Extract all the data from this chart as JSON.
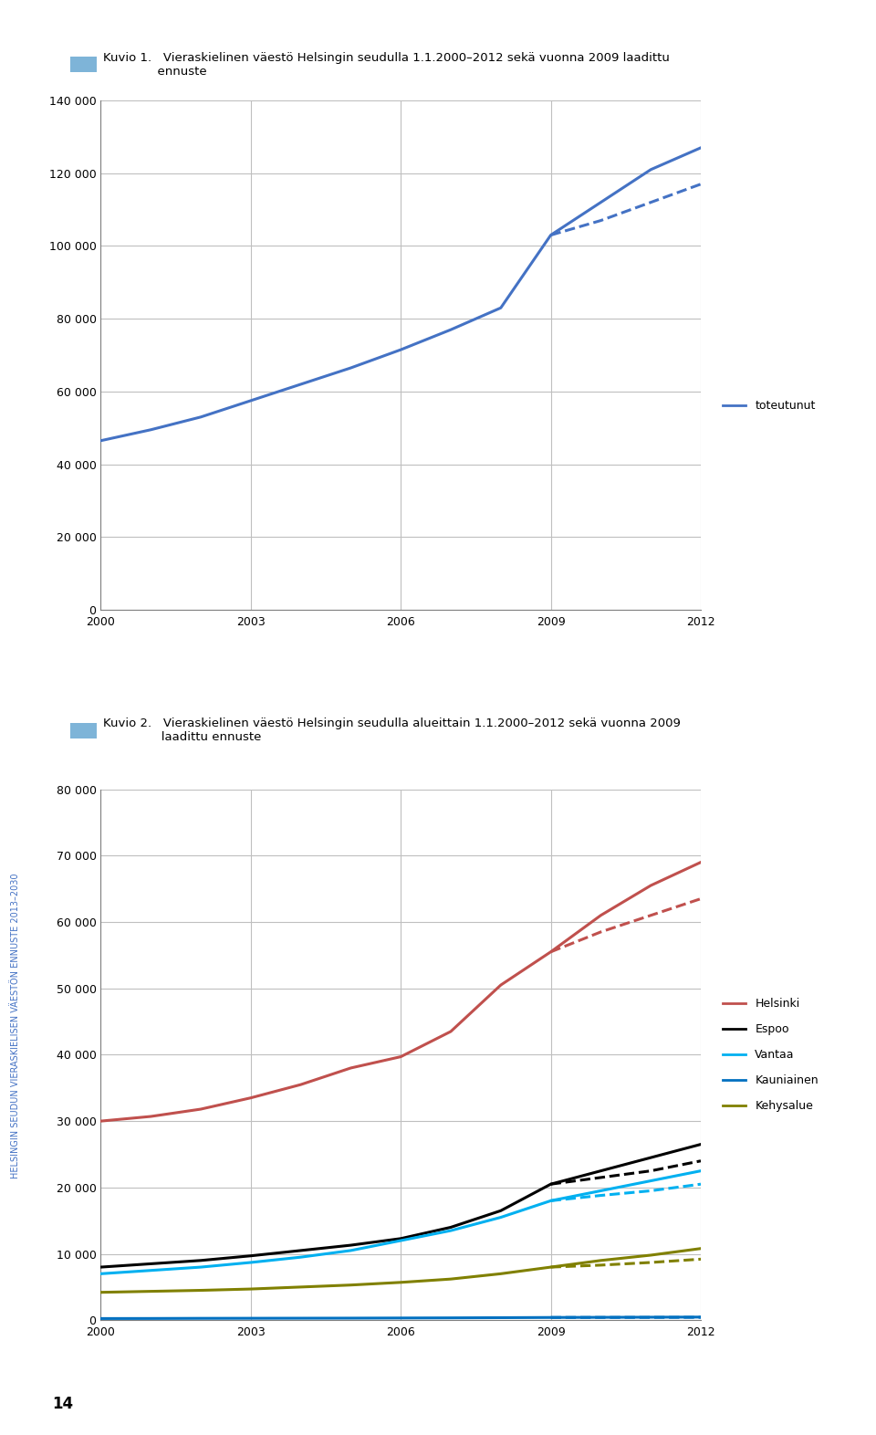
{
  "fig1_title_box_color": "#7EB4D8",
  "fig1_xlim": [
    2000,
    2012
  ],
  "fig1_ylim": [
    0,
    140000
  ],
  "fig1_yticks": [
    0,
    20000,
    40000,
    60000,
    80000,
    100000,
    120000,
    140000
  ],
  "fig1_xticks": [
    2000,
    2003,
    2006,
    2009,
    2012
  ],
  "fig1_actual_years": [
    2000,
    2001,
    2002,
    2003,
    2004,
    2005,
    2006,
    2007,
    2008,
    2009,
    2010,
    2011,
    2012
  ],
  "fig1_actual_values": [
    46500,
    49500,
    53000,
    57500,
    62000,
    66500,
    71500,
    77000,
    83000,
    103000,
    112000,
    121000,
    127000
  ],
  "fig1_forecast_years": [
    2009,
    2010,
    2011,
    2012
  ],
  "fig1_forecast_values": [
    103000,
    107000,
    112000,
    117000
  ],
  "fig1_line_color": "#4472C4",
  "fig1_legend_label": "toteutunut",
  "fig2_title_box_color": "#7EB4D8",
  "fig2_xlim": [
    2000,
    2012
  ],
  "fig2_ylim": [
    0,
    80000
  ],
  "fig2_yticks": [
    0,
    10000,
    20000,
    30000,
    40000,
    50000,
    60000,
    70000,
    80000
  ],
  "fig2_xticks": [
    2000,
    2003,
    2006,
    2009,
    2012
  ],
  "helsinki_actual_years": [
    2000,
    2001,
    2002,
    2003,
    2004,
    2005,
    2006,
    2007,
    2008,
    2009,
    2010,
    2011,
    2012
  ],
  "helsinki_actual_values": [
    30000,
    30700,
    31800,
    33500,
    35500,
    38000,
    39700,
    43500,
    50500,
    55500,
    61000,
    65500,
    69000
  ],
  "helsinki_forecast_years": [
    2009,
    2010,
    2011,
    2012
  ],
  "helsinki_forecast_values": [
    55500,
    58500,
    61000,
    63500
  ],
  "helsinki_color": "#C0504D",
  "espoo_actual_years": [
    2000,
    2001,
    2002,
    2003,
    2004,
    2005,
    2006,
    2007,
    2008,
    2009,
    2010,
    2011,
    2012
  ],
  "espoo_actual_values": [
    8000,
    8500,
    9000,
    9700,
    10500,
    11300,
    12300,
    14000,
    16500,
    20500,
    22500,
    24500,
    26500
  ],
  "espoo_forecast_years": [
    2009,
    2010,
    2011,
    2012
  ],
  "espoo_forecast_values": [
    20500,
    21500,
    22500,
    24000
  ],
  "espoo_color": "#000000",
  "vantaa_actual_years": [
    2000,
    2001,
    2002,
    2003,
    2004,
    2005,
    2006,
    2007,
    2008,
    2009,
    2010,
    2011,
    2012
  ],
  "vantaa_actual_values": [
    7000,
    7500,
    8000,
    8700,
    9500,
    10500,
    12000,
    13500,
    15500,
    18000,
    19500,
    21000,
    22500
  ],
  "vantaa_forecast_years": [
    2009,
    2010,
    2011,
    2012
  ],
  "vantaa_forecast_values": [
    18000,
    18800,
    19500,
    20500
  ],
  "vantaa_color": "#00B0F0",
  "kauniainen_actual_years": [
    2000,
    2001,
    2002,
    2003,
    2004,
    2005,
    2006,
    2007,
    2008,
    2009,
    2010,
    2011,
    2012
  ],
  "kauniainen_actual_values": [
    250,
    260,
    280,
    290,
    300,
    310,
    330,
    350,
    380,
    410,
    430,
    450,
    470
  ],
  "kauniainen_forecast_years": [
    2009,
    2010,
    2011,
    2012
  ],
  "kauniainen_forecast_values": [
    410,
    415,
    420,
    430
  ],
  "kauniainen_color": "#0070C0",
  "kehysalue_actual_years": [
    2000,
    2001,
    2002,
    2003,
    2004,
    2005,
    2006,
    2007,
    2008,
    2009,
    2010,
    2011,
    2012
  ],
  "kehysalue_actual_values": [
    4200,
    4350,
    4500,
    4700,
    5000,
    5300,
    5700,
    6200,
    7000,
    8000,
    9000,
    9800,
    10800
  ],
  "kehysalue_forecast_years": [
    2009,
    2010,
    2011,
    2012
  ],
  "kehysalue_forecast_values": [
    8000,
    8300,
    8700,
    9200
  ],
  "kehysalue_color": "#808000",
  "sidebar_text": "HELSINGIN SEUDUN VIERASKIELISEN VAESTON ENNUSTE 2013-2030",
  "sidebar_text_display": "HELSINGIN SEUDUN VIERASKIELISEN VÄESTÖN ENNUSTE 2013–2030",
  "page_number": "14",
  "background_color": "#FFFFFF"
}
